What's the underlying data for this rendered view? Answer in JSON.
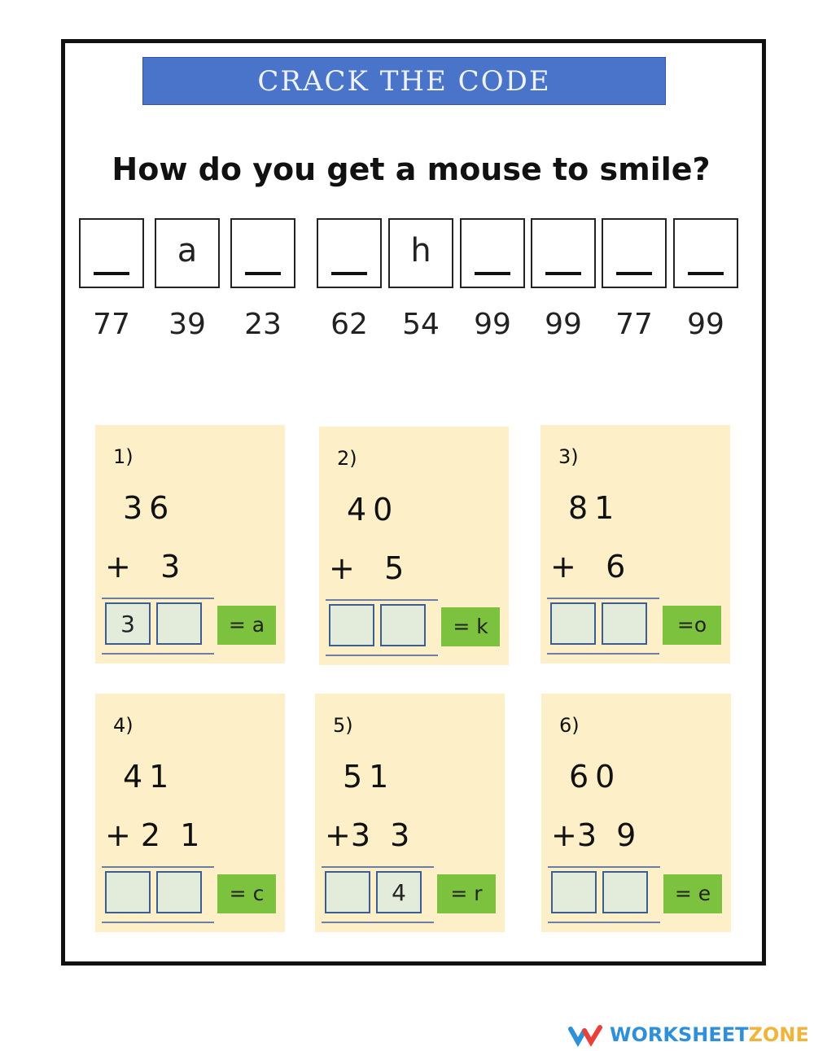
{
  "title": "CRACK THE CODE",
  "question": "How do you get a mouse to smile?",
  "answer_boxes": [
    {
      "letter": "",
      "code": "77"
    },
    {
      "letter": "a",
      "code": "39"
    },
    {
      "letter": "",
      "code": "23"
    },
    {
      "letter": "",
      "code": "62"
    },
    {
      "letter": "h",
      "code": "54"
    },
    {
      "letter": "",
      "code": "99"
    },
    {
      "letter": "",
      "code": "99"
    },
    {
      "letter": "",
      "code": "77"
    },
    {
      "letter": "",
      "code": "99"
    }
  ],
  "problems": [
    {
      "num": "1)",
      "top": "36",
      "bottom": "+   3",
      "answer": [
        "3",
        ""
      ],
      "letter": "= a"
    },
    {
      "num": "2)",
      "top": "40",
      "bottom": "+   5",
      "answer": [
        "",
        ""
      ],
      "letter": "= k"
    },
    {
      "num": "3)",
      "top": "81",
      "bottom": "+   6",
      "answer": [
        "",
        ""
      ],
      "letter": "=o"
    },
    {
      "num": "4)",
      "top": "41",
      "bottom": "+ 2  1",
      "answer": [
        "",
        ""
      ],
      "letter": "= c"
    },
    {
      "num": "5)",
      "top": "51",
      "bottom": "+3  3",
      "answer": [
        "",
        "4"
      ],
      "letter": "= r"
    },
    {
      "num": "6)",
      "top": "60",
      "bottom": "+3  9",
      "answer": [
        "",
        ""
      ],
      "letter": "= e"
    }
  ],
  "footer": {
    "brand_a": "WORKSHEET",
    "brand_b": "ZONE",
    "colors": {
      "blue": "#2f8fd8",
      "orange": "#f0b43c"
    }
  }
}
